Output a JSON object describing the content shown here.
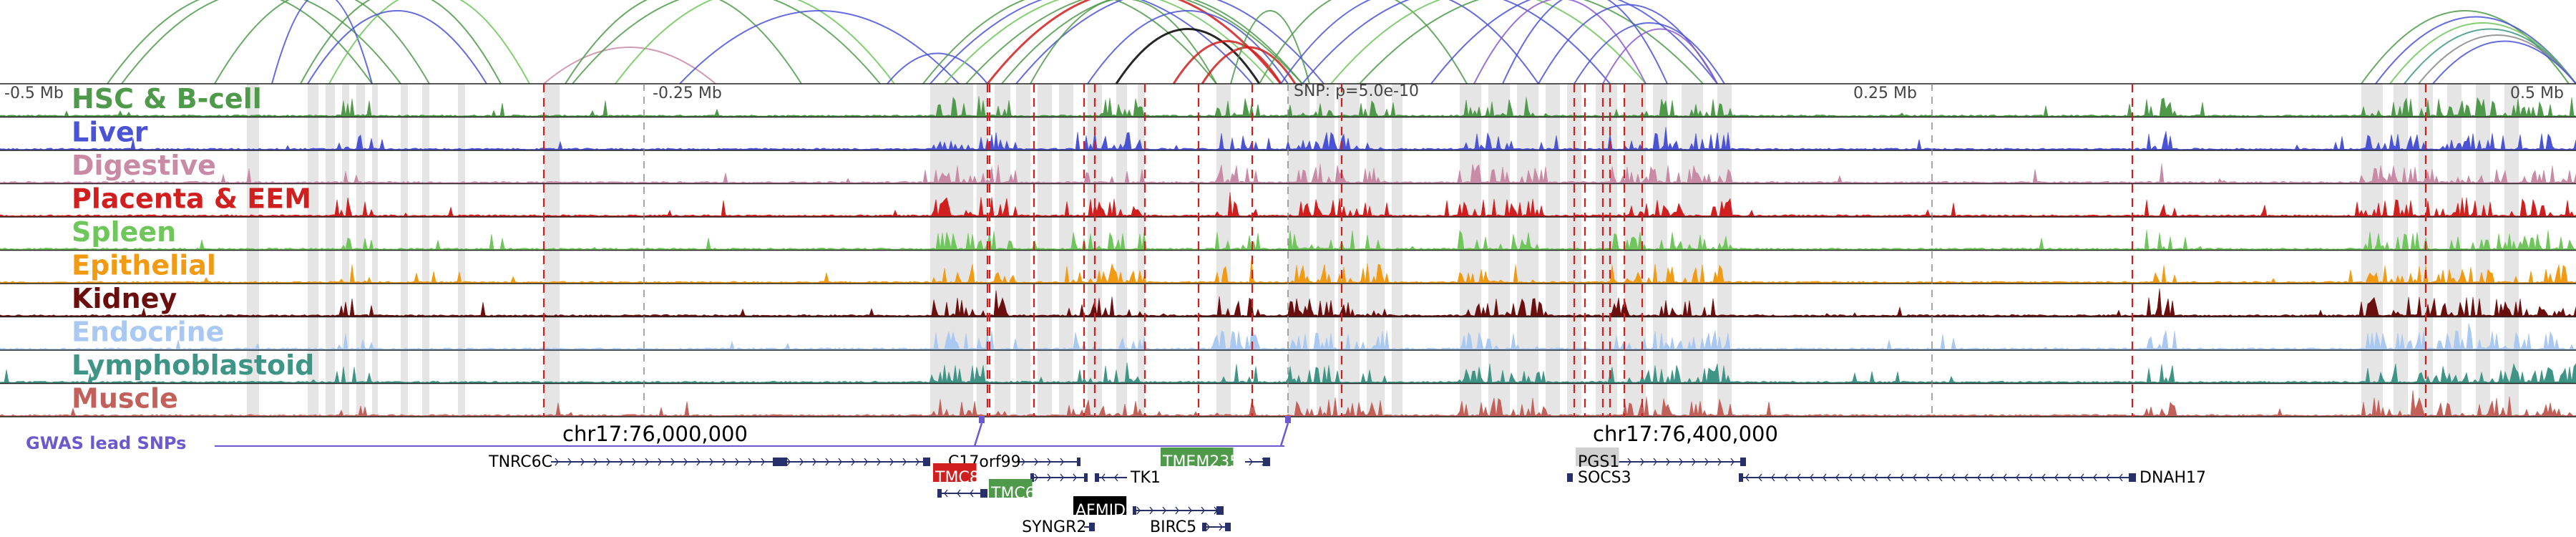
{
  "axis": {
    "left_label": "-0.5 Mb",
    "mid_left_label": "-0.25 Mb",
    "snp_label": "SNP: p=5.0e-10",
    "mid_right_label": "0.25 Mb",
    "right_label": "0.5 Mb"
  },
  "tracks": [
    {
      "name": "HSC & B-cell",
      "color": "#4f9a4a"
    },
    {
      "name": "Liver",
      "color": "#4a52d6"
    },
    {
      "name": "Digestive",
      "color": "#c98aa6"
    },
    {
      "name": "Placenta & EEM",
      "color": "#d11f1f"
    },
    {
      "name": "Spleen",
      "color": "#6fc65a"
    },
    {
      "name": "Epithelial",
      "color": "#f29a12"
    },
    {
      "name": "Kidney",
      "color": "#6b0e0e"
    },
    {
      "name": "Endocrine",
      "color": "#a9c8f2"
    },
    {
      "name": "Lymphoblastoid",
      "color": "#3f9585"
    },
    {
      "name": "Muscle",
      "color": "#c4605a"
    }
  ],
  "gwas": {
    "label": "GWAS lead SNPs",
    "color": "#6a5acd",
    "coord_left": "chr17:76,000,000",
    "coord_right": "chr17:76,400,000"
  },
  "genes": [
    {
      "name": "TNRC6C",
      "strand": "+",
      "highlight": "none"
    },
    {
      "name": "C17orf99",
      "strand": "+",
      "highlight": "none"
    },
    {
      "name": "TMC8",
      "strand": "+",
      "highlight": "red"
    },
    {
      "name": "TMC6",
      "strand": "-",
      "highlight": "green"
    },
    {
      "name": "TMEM235",
      "strand": "+",
      "highlight": "green"
    },
    {
      "name": "TK1",
      "strand": "-",
      "highlight": "none"
    },
    {
      "name": "AFMID",
      "strand": "+",
      "highlight": "black"
    },
    {
      "name": "SYNGR2",
      "strand": "-",
      "highlight": "none"
    },
    {
      "name": "BIRC5",
      "strand": "+",
      "highlight": "none"
    },
    {
      "name": "PGS1",
      "strand": "+",
      "highlight": "gray"
    },
    {
      "name": "SOCS3",
      "strand": "-",
      "highlight": "none"
    },
    {
      "name": "DNAH17",
      "strand": "-",
      "highlight": "none"
    }
  ]
}
